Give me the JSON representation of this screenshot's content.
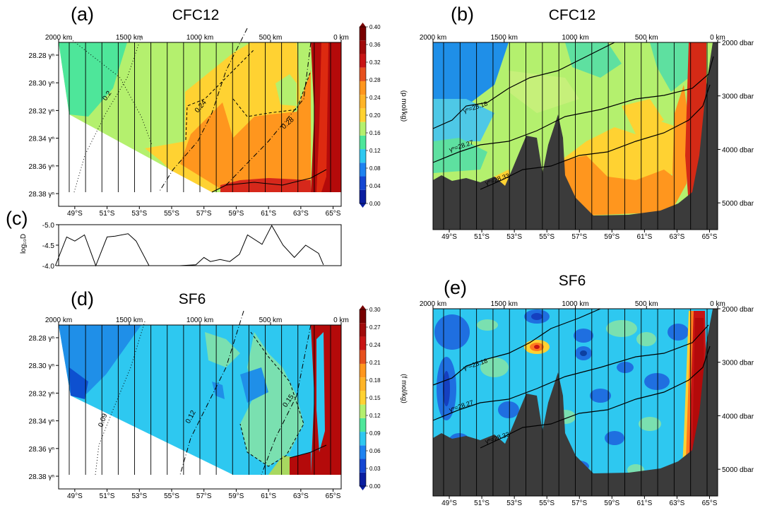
{
  "chart_data": [
    {
      "panel": "(a)",
      "type": "heatmap",
      "title": "CFC12",
      "colorbar": {
        "label": "(p mol/kg)",
        "ticks": [
          "0.00",
          "0.04",
          "0.08",
          "0.12",
          "0.16",
          "0.20",
          "0.24",
          "0.28",
          "0.32",
          "0.36",
          "0.40"
        ],
        "range": [
          0,
          0.4
        ]
      },
      "top_axis": [
        "2000 km",
        "1500 km",
        "1000 km",
        "500 km",
        "0 km"
      ],
      "bottom_axis": [
        "49°S",
        "51°S",
        "53°S",
        "55°S",
        "57°S",
        "59°S",
        "61°S",
        "63°S",
        "65°S"
      ],
      "y_axis": [
        "28.28 γⁿ",
        "28.30 γⁿ",
        "28.32 γⁿ",
        "28.34 γⁿ",
        "28.36 γⁿ",
        "28.38 γⁿ"
      ],
      "contour_labels": [
        "0.2",
        "0.24",
        "0.28"
      ]
    },
    {
      "panel": "(b)",
      "type": "heatmap",
      "title": "CFC12",
      "top_axis": [
        "2000 km",
        "1500 km",
        "1000 km",
        "500 km",
        "0 km"
      ],
      "bottom_axis": [
        "49°S",
        "51°S",
        "53°S",
        "55°S",
        "57°S",
        "59°S",
        "61°S",
        "63°S",
        "65°S"
      ],
      "right_axis": [
        "2000 dbar",
        "3000 dbar",
        "4000 dbar",
        "5000 dbar"
      ],
      "isopycnals": [
        "γⁿ=28.18",
        "γⁿ=28.27",
        "γⁿ=28.33"
      ]
    },
    {
      "panel": "(c)",
      "type": "line",
      "ylabel": "log₁₀D",
      "y_ticks": [
        "-5.0",
        "-4.5",
        "-4.0"
      ],
      "ylim": [
        -5.0,
        -4.0
      ],
      "x": [
        47.8,
        48.5,
        49.0,
        49.6,
        50.3,
        51.0,
        51.5,
        52.3,
        52.8,
        53.6,
        54.5,
        55.5,
        56.5,
        57.0,
        57.4,
        58.0,
        58.6,
        59.2,
        59.7,
        60.6,
        61.2,
        61.9,
        62.6,
        63.3,
        64.1,
        64.4
      ],
      "y": [
        -4.0,
        -4.7,
        -4.6,
        -4.75,
        -4.0,
        -4.7,
        -4.72,
        -4.78,
        -4.6,
        -4.0,
        -4.0,
        -4.0,
        -4.02,
        -4.2,
        -4.1,
        -4.15,
        -4.1,
        -4.28,
        -4.75,
        -4.52,
        -4.98,
        -4.5,
        -4.2,
        -4.5,
        -4.3,
        -4.02
      ]
    },
    {
      "panel": "(d)",
      "type": "heatmap",
      "title": "SF6",
      "colorbar": {
        "label": "(f mol/kg)",
        "ticks": [
          "0.00",
          "0.03",
          "0.06",
          "0.09",
          "0.12",
          "0.15",
          "0.18",
          "0.21",
          "0.24",
          "0.27",
          "0.30"
        ],
        "range": [
          0,
          0.3
        ]
      },
      "top_axis": [
        "2000 km",
        "1500 km",
        "1000 km",
        "500 km",
        "0 km"
      ],
      "bottom_axis": [
        "49°S",
        "51°S",
        "53°S",
        "55°S",
        "57°S",
        "59°S",
        "61°S",
        "63°S",
        "65°S"
      ],
      "y_axis": [
        "28.28 γⁿ",
        "28.30 γⁿ",
        "28.32 γⁿ",
        "28.34 γⁿ",
        "28.36 γⁿ",
        "28.38 γⁿ"
      ],
      "contour_labels": [
        "0.09",
        "0.12",
        "0.15"
      ]
    },
    {
      "panel": "(e)",
      "type": "heatmap",
      "title": "SF6",
      "top_axis": [
        "2000 km",
        "1500 km",
        "1000 km",
        "500 km",
        "0 km"
      ],
      "bottom_axis": [
        "49°S",
        "51°S",
        "53°S",
        "55°S",
        "57°S",
        "59°S",
        "61°S",
        "63°S",
        "65°S"
      ],
      "right_axis": [
        "2000 dbar",
        "3000 dbar",
        "4000 dbar",
        "5000 dbar"
      ],
      "isopycnals": [
        "γⁿ=28.18",
        "γⁿ=28.27",
        "γⁿ=28.33"
      ]
    }
  ]
}
